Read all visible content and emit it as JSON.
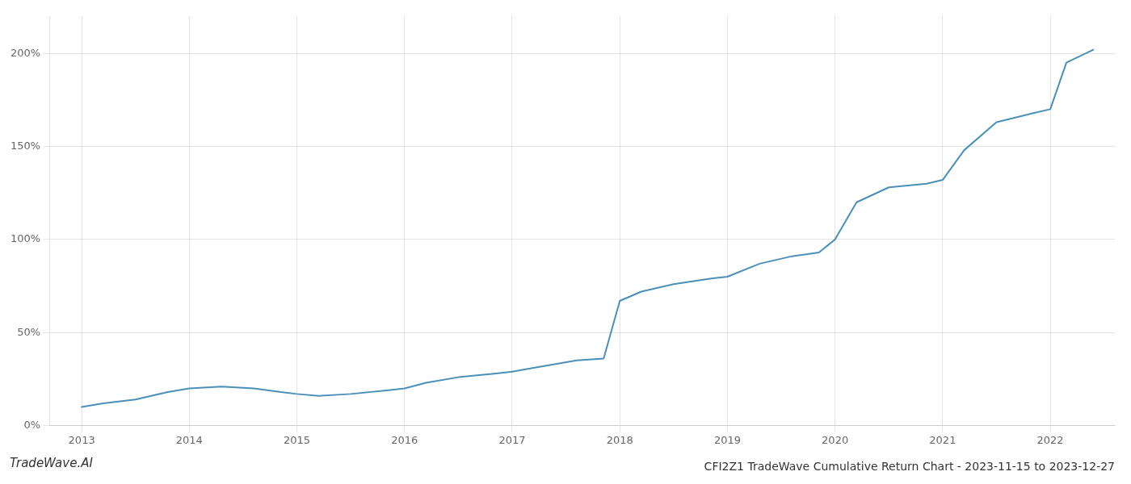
{
  "chart_data": {
    "type": "line",
    "title": "CFI2Z1 TradeWave Cumulative Return Chart - 2023-11-15 to 2023-12-27",
    "annotations": [
      "TradeWave.AI"
    ],
    "x": [
      2013.0,
      2013.2,
      2013.5,
      2013.8,
      2014.0,
      2014.3,
      2014.6,
      2014.85,
      2015.0,
      2015.2,
      2015.5,
      2015.85,
      2016.0,
      2016.2,
      2016.5,
      2016.85,
      2017.0,
      2017.2,
      2017.6,
      2017.85,
      2018.0,
      2018.2,
      2018.5,
      2018.85,
      2019.0,
      2019.3,
      2019.6,
      2019.85,
      2020.0,
      2020.2,
      2020.5,
      2020.85,
      2021.0,
      2021.2,
      2021.5,
      2021.85,
      2022.0,
      2022.15,
      2022.4
    ],
    "values": [
      10,
      12,
      14,
      18,
      20,
      21,
      20,
      18,
      17,
      16,
      17,
      19,
      20,
      23,
      26,
      28,
      29,
      31,
      35,
      36,
      67,
      72,
      76,
      79,
      80,
      87,
      91,
      93,
      100,
      120,
      128,
      130,
      132,
      148,
      163,
      168,
      170,
      195,
      202
    ],
    "color": "#4a90b8",
    "xlim": [
      2012.7,
      2022.6
    ],
    "xticks": [
      2013,
      2014,
      2015,
      2016,
      2017,
      2018,
      2019,
      2020,
      2021,
      2022
    ],
    "ylim": [
      0,
      220
    ],
    "yticks": [
      {
        "value": 0,
        "label": "0%"
      },
      {
        "value": 50,
        "label": "50%"
      },
      {
        "value": 100,
        "label": "100%"
      },
      {
        "value": 150,
        "label": "150%"
      },
      {
        "value": 200,
        "label": "200%"
      }
    ],
    "grid": true
  }
}
